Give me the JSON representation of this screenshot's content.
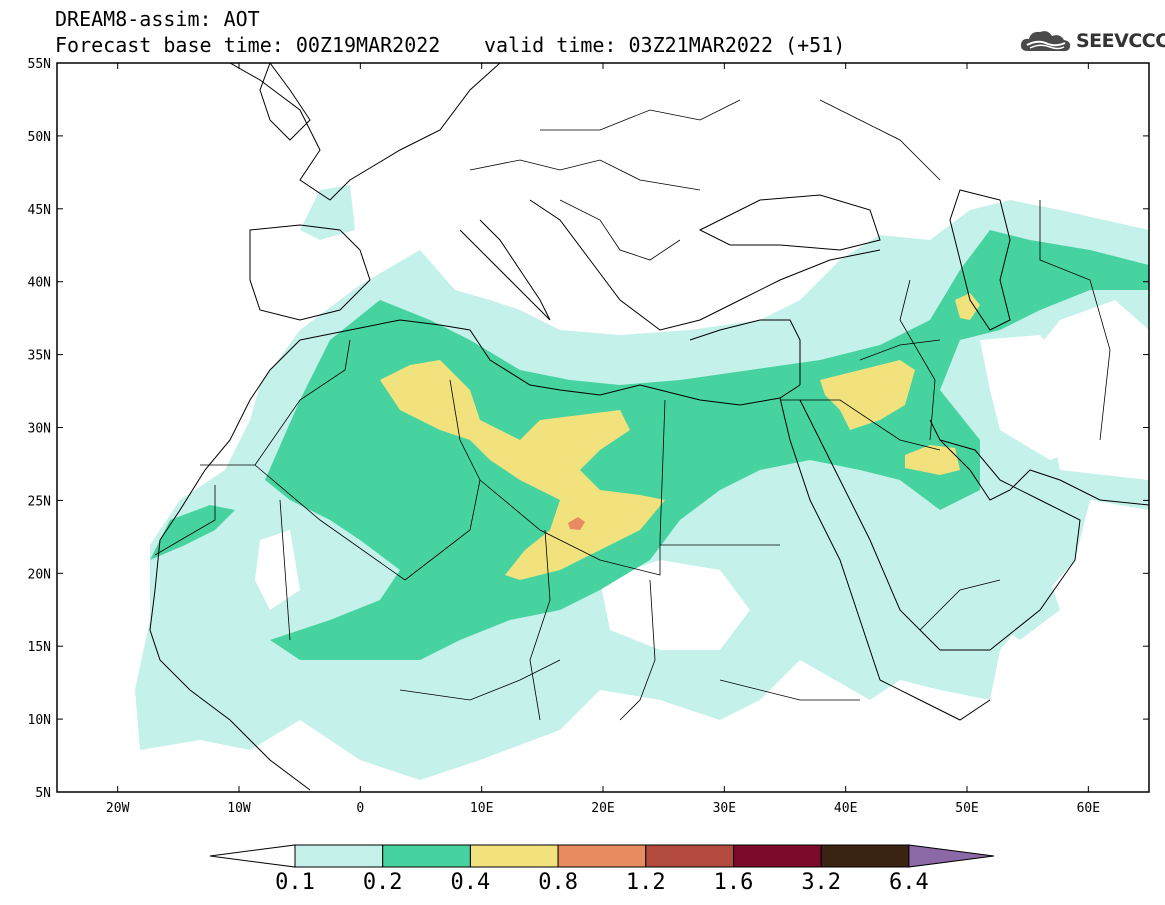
{
  "title": {
    "line1": "DREAM8-assim: AOT",
    "base": "Forecast base time: 00Z19MAR2022",
    "valid": "valid time: 03Z21MAR2022 (+51)"
  },
  "logo": {
    "icon": "cloud-icon",
    "text": "SEEVCCC"
  },
  "axes": {
    "lon_ticks": [
      "20W",
      "10W",
      "0",
      "10E",
      "20E",
      "30E",
      "40E",
      "50E",
      "60E"
    ],
    "lat_ticks": [
      "5N",
      "10N",
      "15N",
      "20N",
      "25N",
      "30N",
      "35N",
      "40N",
      "45N",
      "50N",
      "55N"
    ],
    "lon_range": [
      -25,
      65
    ],
    "lat_range": [
      5,
      55
    ]
  },
  "colorbar": {
    "labels": [
      "0.1",
      "0.2",
      "0.4",
      "0.8",
      "1.2",
      "1.6",
      "3.2",
      "6.4"
    ],
    "colors": [
      "#ffffff",
      "#c4f1ea",
      "#47d3a0",
      "#f2e27d",
      "#e88b60",
      "#b34c3f",
      "#7c0a2a",
      "#3a2313",
      "#8c68a6"
    ]
  },
  "colors": {
    "low": "#c4f1ea",
    "mid": "#47d3a0",
    "high": "#f2e27d",
    "peak": "#e88b60"
  }
}
